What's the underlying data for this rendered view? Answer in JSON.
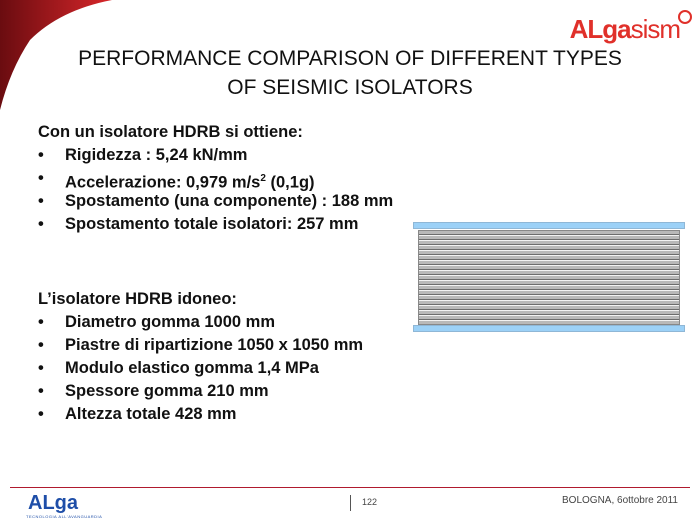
{
  "logo_top": {
    "strong": "ALga",
    "light": "sism"
  },
  "title": [
    "PERFORMANCE COMPARISON OF DIFFERENT TYPES",
    "OF SEISMIC ISOLATORS"
  ],
  "section1": {
    "heading": "Con un isolatore HDRB si ottiene:",
    "items": [
      {
        "text": "Rigidezza : 5,24 kN/mm"
      },
      {
        "pre": "Accelerazione: 0,979 m/s",
        "sup": "2",
        "post": " (0,1g)"
      },
      {
        "text": "Spostamento (una componente) : 188 mm"
      },
      {
        "text": "Spostamento totale isolatori: 257 mm"
      }
    ]
  },
  "section2": {
    "heading": "L’isolatore HDRB idoneo:",
    "items": [
      "Diametro gomma 1000 mm",
      "Piastre di ripartizione 1050 x 1050 mm",
      "Modulo elastico gomma 1,4 MPa",
      "Spessore gomma 210 mm",
      "Altezza totale 428 mm"
    ]
  },
  "bullet": "•",
  "footer": {
    "logo": "ALga",
    "logo_sub": "TECNOLOGIA ALL'AVANGUARDIA",
    "page": "122",
    "date": "BOLOGNA, 6ottobre 2011"
  },
  "colors": {
    "brand_red": "#e0302a",
    "brand_blue": "#1e4ea8",
    "plate": "#9cd1f7"
  }
}
